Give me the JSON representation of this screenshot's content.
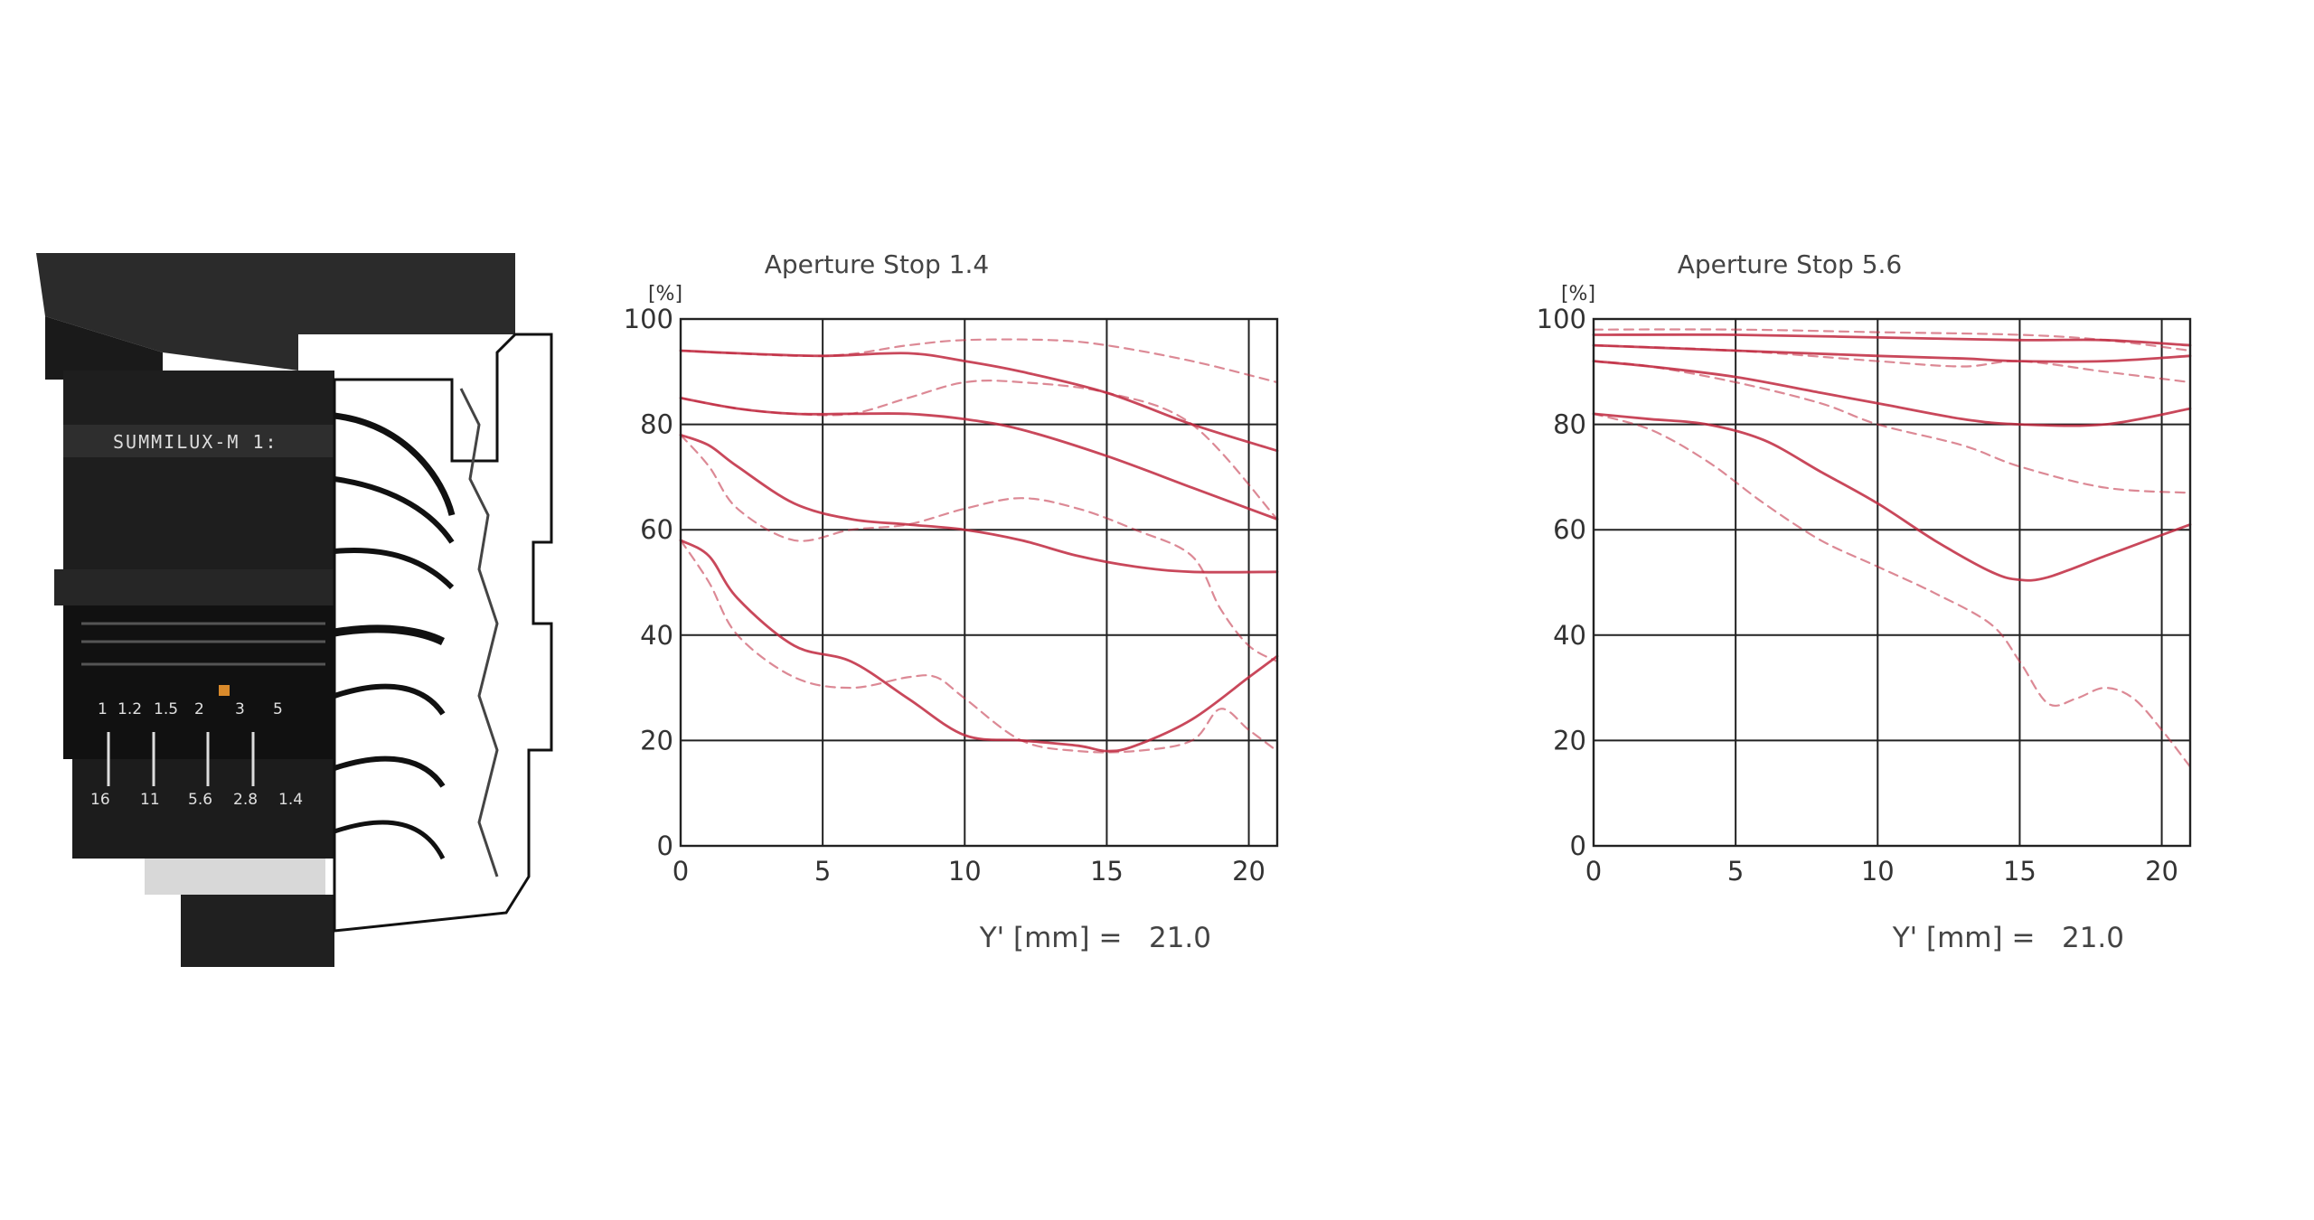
{
  "lens_image": {
    "engraving": "SUMMILUX-M 1:",
    "focus_scale": [
      "16",
      "11",
      "5.6",
      "2.8",
      "1.4"
    ],
    "distance_scale": [
      "1",
      "1.2",
      "1.5",
      "2",
      "3",
      "5"
    ],
    "hood_color": "#2b2b2b",
    "barrel_color": "#1e1e1e",
    "accent_color": "#d98a2b"
  },
  "chart_data": [
    {
      "type": "line",
      "title": "Aperture Stop 1.4",
      "ylabel": "[%]",
      "xlabel": "Y' [mm] =   21.0",
      "xlim": [
        0,
        21
      ],
      "ylim": [
        0,
        100
      ],
      "xticks": [
        0,
        5,
        10,
        15,
        20
      ],
      "yticks": [
        0,
        20,
        40,
        60,
        80,
        100
      ],
      "grid": true,
      "series": [
        {
          "style": "solid",
          "x": [
            0,
            2,
            5,
            8,
            10,
            12,
            15,
            18,
            21
          ],
          "values": [
            94,
            93.5,
            93,
            93.5,
            92,
            90,
            86,
            80,
            75
          ]
        },
        {
          "style": "dashed",
          "x": [
            0,
            5,
            8,
            10,
            13,
            15,
            18,
            21
          ],
          "values": [
            94,
            93,
            95,
            96,
            96,
            95,
            92,
            88
          ]
        },
        {
          "style": "solid",
          "x": [
            0,
            2,
            4,
            6,
            8,
            10,
            12,
            15,
            18,
            21
          ],
          "values": [
            85,
            83,
            82,
            82,
            82,
            81,
            79,
            74,
            68,
            62
          ]
        },
        {
          "style": "dashed",
          "x": [
            0,
            2,
            4,
            6,
            8,
            10,
            12,
            15,
            18,
            21
          ],
          "values": [
            85,
            83,
            82,
            82,
            85,
            88,
            88,
            86,
            80,
            62
          ]
        },
        {
          "style": "solid",
          "x": [
            0,
            1,
            2,
            4,
            6,
            8,
            10,
            12,
            14,
            16,
            18,
            21
          ],
          "values": [
            78,
            76,
            72,
            65,
            62,
            61,
            60,
            58,
            55,
            53,
            52,
            52
          ]
        },
        {
          "style": "dashed",
          "x": [
            0,
            1,
            2,
            4,
            6,
            8,
            10,
            12,
            14,
            16,
            18,
            19,
            20,
            21
          ],
          "values": [
            78,
            72,
            64,
            58,
            60,
            61,
            64,
            66,
            64,
            60,
            55,
            45,
            38,
            35
          ]
        },
        {
          "style": "solid",
          "x": [
            0,
            1,
            2,
            4,
            6,
            8,
            10,
            12,
            14,
            15,
            16,
            18,
            20,
            21
          ],
          "values": [
            58,
            55,
            47,
            38,
            35,
            28,
            21,
            20,
            19,
            18,
            19,
            24,
            32,
            36
          ]
        },
        {
          "style": "dashed",
          "x": [
            0,
            1,
            2,
            4,
            6,
            8,
            9,
            10,
            12,
            14,
            16,
            18,
            19,
            20,
            21
          ],
          "values": [
            58,
            50,
            40,
            32,
            30,
            32,
            32,
            28,
            20,
            18,
            18,
            20,
            26,
            22,
            18
          ]
        }
      ]
    },
    {
      "type": "line",
      "title": "Aperture Stop 5.6",
      "ylabel": "[%]",
      "xlabel": "Y' [mm] =   21.0",
      "xlim": [
        0,
        21
      ],
      "ylim": [
        0,
        100
      ],
      "xticks": [
        0,
        5,
        10,
        15,
        20
      ],
      "yticks": [
        0,
        20,
        40,
        60,
        80,
        100
      ],
      "grid": true,
      "series": [
        {
          "style": "solid",
          "x": [
            0,
            5,
            10,
            15,
            18,
            21
          ],
          "values": [
            97,
            97,
            96.5,
            96,
            96,
            95
          ]
        },
        {
          "style": "dashed",
          "x": [
            0,
            5,
            10,
            15,
            18,
            21
          ],
          "values": [
            98,
            98,
            97.5,
            97,
            96,
            94
          ]
        },
        {
          "style": "solid",
          "x": [
            0,
            5,
            10,
            13,
            15,
            18,
            21
          ],
          "values": [
            95,
            94,
            93,
            92.5,
            92,
            92,
            93
          ]
        },
        {
          "style": "dashed",
          "x": [
            0,
            5,
            10,
            13,
            15,
            18,
            21
          ],
          "values": [
            95,
            94,
            92,
            91,
            92,
            90,
            88
          ]
        },
        {
          "style": "solid",
          "x": [
            0,
            2,
            5,
            8,
            10,
            13,
            15,
            18,
            21
          ],
          "values": [
            92,
            91,
            89,
            86,
            84,
            81,
            80,
            80,
            83
          ]
        },
        {
          "style": "dashed",
          "x": [
            0,
            2,
            5,
            8,
            10,
            13,
            15,
            18,
            21
          ],
          "values": [
            92,
            91,
            88,
            84,
            80,
            76,
            72,
            68,
            67
          ]
        },
        {
          "style": "solid",
          "x": [
            0,
            2,
            4,
            6,
            8,
            10,
            12,
            14,
            15,
            16,
            18,
            20,
            21
          ],
          "values": [
            82,
            81,
            80,
            77,
            71,
            65,
            58,
            52,
            50.5,
            51,
            55,
            59,
            61
          ]
        },
        {
          "style": "dashed",
          "x": [
            0,
            2,
            4,
            6,
            8,
            10,
            12,
            14,
            15,
            16,
            17,
            18,
            19,
            20,
            21
          ],
          "values": [
            82,
            79,
            73,
            65,
            58,
            53,
            48,
            42,
            35,
            27,
            28,
            30,
            28,
            22,
            15
          ]
        }
      ]
    }
  ]
}
